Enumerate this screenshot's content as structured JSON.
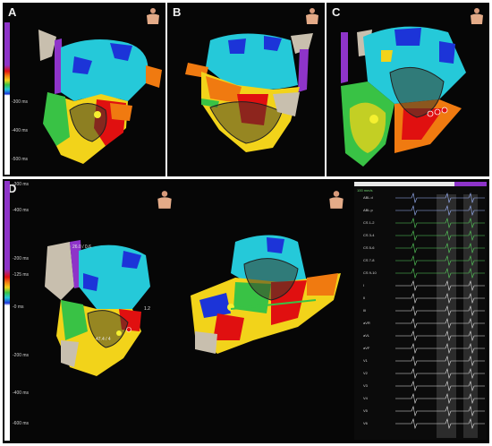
{
  "panels": {
    "a": {
      "label": "A"
    },
    "b": {
      "label": "B"
    },
    "c": {
      "label": "C"
    },
    "d": {
      "label": "D"
    }
  },
  "scale_top": [
    "-300 ms",
    "-400 ms",
    "-500 ms"
  ],
  "scale_d": [
    "-300 ms",
    "-400 ms",
    "-200 ms",
    "-125 ms",
    "-0 ms",
    "-200 ms",
    "-400 ms",
    "-600 ms"
  ],
  "map_annotations": [
    "26.0 / 0.6",
    "47.4 / 4",
    "1.2"
  ],
  "egm": {
    "speed": "100 mm/s",
    "channels": [
      "ABL d",
      "ABL p",
      "CS 1-2",
      "CS 3-4",
      "CS 5-6",
      "CS 7-8",
      "CS 9-10",
      "I",
      "II",
      "III",
      "aVR",
      "aVL",
      "aVF",
      "V1",
      "V2",
      "V3",
      "V4",
      "V5",
      "V6"
    ]
  },
  "colors": {
    "purple": "#8e34c9",
    "red": "#e01010",
    "orange": "#f07a10",
    "yellow": "#f2d31a",
    "green": "#39c245",
    "cyan": "#25c9d9",
    "blue": "#1c34d8",
    "grey": "#c8bfae"
  }
}
